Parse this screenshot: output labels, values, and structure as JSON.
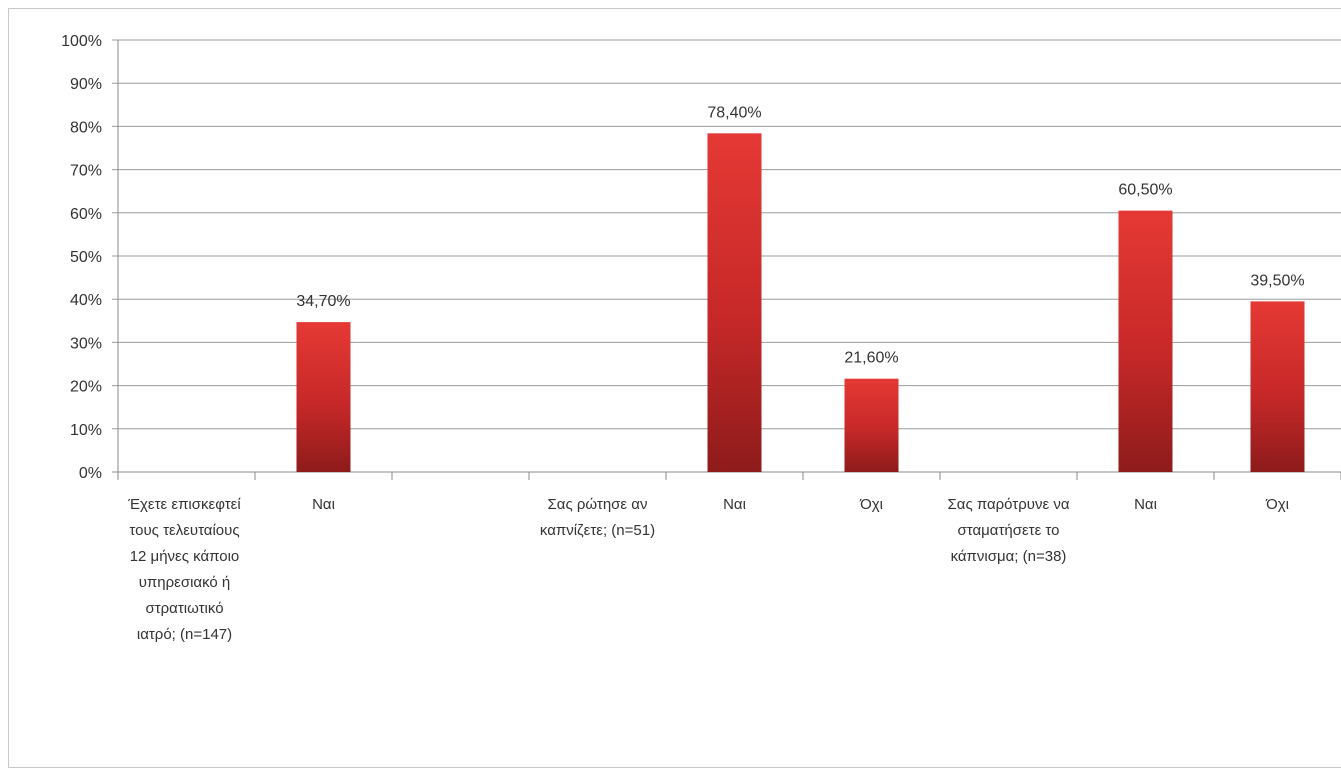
{
  "chart_data": {
    "type": "bar",
    "ylim": [
      0,
      100
    ],
    "ytick_labels": [
      "0%",
      "10%",
      "20%",
      "30%",
      "40%",
      "50%",
      "60%",
      "70%",
      "80%",
      "90%",
      "100%"
    ],
    "grid": true,
    "bar_color": "#c62828",
    "categories": [
      "Έχετε επισκεφτεί τους τελευταίους 12 μήνες κάποιο υπηρεσιακό ή στρατιωτικό ιατρό; (n=147)",
      "Ναι",
      "",
      "Σας ρώτησε αν καπνίζετε; (n=51)",
      "Ναι",
      "Όχι",
      "Σας παρότρυνε να σταματήσετε το κάπνισμα; (n=38)",
      "Ναι",
      "Όχι"
    ],
    "values": [
      null,
      34.7,
      null,
      null,
      78.4,
      21.6,
      null,
      60.5,
      39.5
    ],
    "data_labels": [
      "",
      "34,70%",
      "",
      "",
      "78,40%",
      "21,60%",
      "",
      "60,50%",
      "39,50%"
    ]
  }
}
